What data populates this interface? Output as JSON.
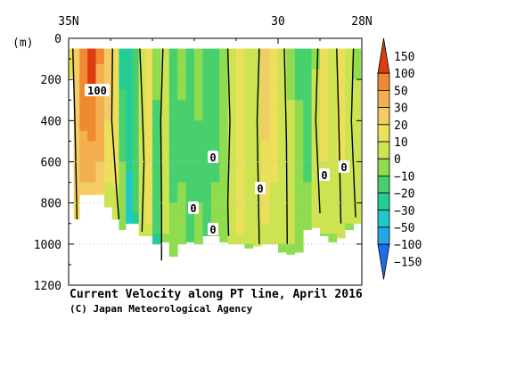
{
  "chart_data": {
    "type": "heatmap",
    "title": "Current Velocity along PT line, April 2016",
    "credit": "(C) Japan Meteorological Agency",
    "ylabel": "(m)",
    "x_ticks": [
      "35N",
      "30",
      "28N"
    ],
    "x_tick_values": [
      35,
      30,
      28
    ],
    "xlim": [
      35,
      28
    ],
    "y_ticks": [
      0,
      200,
      400,
      600,
      800,
      1000,
      1200
    ],
    "ylim": [
      0,
      1200
    ],
    "y_inverted": true,
    "grid": false,
    "colorbar": {
      "placement": "right",
      "levels": [
        150,
        100,
        50,
        30,
        20,
        10,
        0,
        -10,
        -20,
        -30,
        -50,
        -100,
        -150
      ],
      "level_labels": [
        "150",
        "100",
        "50",
        "30",
        "20",
        "10",
        "0",
        "−10",
        "−20",
        "−30",
        "−50",
        "−100",
        "−150"
      ],
      "colors": [
        "#dd3c10",
        "#f08a30",
        "#f4b050",
        "#f4cc66",
        "#ecdf5c",
        "#cde352",
        "#8fdc4e",
        "#48d06e",
        "#26cc95",
        "#20c8c8",
        "#22a8e8",
        "#1c6ee8"
      ]
    },
    "contour_labels": [
      "100",
      "0",
      "0",
      "0",
      "0",
      "0",
      "0"
    ],
    "columns": [
      {
        "lat": 34.93,
        "maxdepth": 190,
        "v": [
          [
            0,
            20
          ],
          [
            200,
            20
          ]
        ]
      },
      {
        "lat": 34.83,
        "maxdepth": 880,
        "v": [
          [
            0,
            30
          ],
          [
            300,
            30
          ],
          [
            800,
            20
          ]
        ]
      },
      {
        "lat": 34.65,
        "maxdepth": 760,
        "v": [
          [
            0,
            50
          ],
          [
            200,
            60
          ],
          [
            450,
            50
          ],
          [
            700,
            30
          ]
        ]
      },
      {
        "lat": 34.45,
        "maxdepth": 760,
        "v": [
          [
            0,
            160
          ],
          [
            150,
            130
          ],
          [
            300,
            80
          ],
          [
            500,
            50
          ],
          [
            700,
            30
          ]
        ]
      },
      {
        "lat": 34.25,
        "maxdepth": 760,
        "v": [
          [
            0,
            60
          ],
          [
            250,
            40
          ],
          [
            600,
            30
          ],
          [
            750,
            20
          ]
        ]
      },
      {
        "lat": 34.05,
        "maxdepth": 820,
        "v": [
          [
            0,
            30
          ],
          [
            400,
            20
          ],
          [
            700,
            10
          ]
        ]
      },
      {
        "lat": 33.88,
        "maxdepth": 880,
        "v": [
          [
            0,
            10
          ],
          [
            300,
            20
          ],
          [
            600,
            15
          ],
          [
            850,
            5
          ]
        ]
      },
      {
        "lat": 33.72,
        "maxdepth": 930,
        "v": [
          [
            0,
            -30
          ],
          [
            250,
            -20
          ],
          [
            600,
            -10
          ],
          [
            900,
            -5
          ]
        ]
      },
      {
        "lat": 33.55,
        "maxdepth": 900,
        "v": [
          [
            0,
            -30
          ],
          [
            300,
            -20
          ],
          [
            650,
            -30
          ],
          [
            850,
            -40
          ]
        ]
      },
      {
        "lat": 33.4,
        "maxdepth": 900,
        "v": [
          [
            0,
            -20
          ],
          [
            300,
            -15
          ],
          [
            600,
            -10
          ],
          [
            850,
            -20
          ]
        ]
      },
      {
        "lat": 33.25,
        "maxdepth": 960,
        "v": [
          [
            0,
            5
          ],
          [
            250,
            10
          ],
          [
            600,
            10
          ],
          [
            900,
            5
          ]
        ]
      },
      {
        "lat": 33.1,
        "maxdepth": 960,
        "v": [
          [
            0,
            10
          ],
          [
            300,
            20
          ],
          [
            700,
            15
          ],
          [
            900,
            10
          ]
        ]
      },
      {
        "lat": 32.9,
        "maxdepth": 1000,
        "v": [
          [
            0,
            -5
          ],
          [
            300,
            -10
          ],
          [
            600,
            -15
          ],
          [
            950,
            -20
          ]
        ]
      },
      {
        "lat": 32.7,
        "maxdepth": 990,
        "v": [
          [
            0,
            5
          ],
          [
            300,
            5
          ],
          [
            700,
            5
          ],
          [
            950,
            0
          ]
        ]
      },
      {
        "lat": 32.5,
        "maxdepth": 1060,
        "v": [
          [
            0,
            -10
          ],
          [
            400,
            -15
          ],
          [
            800,
            -10
          ],
          [
            1000,
            -5
          ]
        ]
      },
      {
        "lat": 32.3,
        "maxdepth": 1000,
        "v": [
          [
            0,
            -5
          ],
          [
            300,
            -10
          ],
          [
            700,
            -10
          ],
          [
            950,
            -5
          ]
        ]
      },
      {
        "lat": 32.1,
        "maxdepth": 990,
        "v": [
          [
            0,
            -10
          ],
          [
            400,
            -20
          ],
          [
            800,
            -15
          ],
          [
            950,
            -10
          ]
        ]
      },
      {
        "lat": 31.9,
        "maxdepth": 1000,
        "v": [
          [
            0,
            -5
          ],
          [
            400,
            -10
          ],
          [
            800,
            -10
          ],
          [
            950,
            -5
          ]
        ]
      },
      {
        "lat": 31.7,
        "maxdepth": 960,
        "v": [
          [
            0,
            -10
          ],
          [
            300,
            -20
          ],
          [
            700,
            -15
          ],
          [
            900,
            -10
          ]
        ]
      },
      {
        "lat": 31.5,
        "maxdepth": 960,
        "v": [
          [
            0,
            -15
          ],
          [
            300,
            -10
          ],
          [
            700,
            -10
          ],
          [
            900,
            -5
          ]
        ]
      },
      {
        "lat": 31.3,
        "maxdepth": 990,
        "v": [
          [
            0,
            -10
          ],
          [
            300,
            -5
          ],
          [
            700,
            -10
          ],
          [
            950,
            -5
          ]
        ]
      },
      {
        "lat": 31.1,
        "maxdepth": 1000,
        "v": [
          [
            0,
            5
          ],
          [
            400,
            10
          ],
          [
            800,
            10
          ],
          [
            950,
            5
          ]
        ]
      },
      {
        "lat": 30.9,
        "maxdepth": 1000,
        "v": [
          [
            0,
            10
          ],
          [
            300,
            20
          ],
          [
            700,
            15
          ],
          [
            950,
            10
          ]
        ]
      },
      {
        "lat": 30.7,
        "maxdepth": 1020,
        "v": [
          [
            0,
            5
          ],
          [
            400,
            10
          ],
          [
            800,
            5
          ],
          [
            1000,
            0
          ]
        ]
      },
      {
        "lat": 30.5,
        "maxdepth": 1010,
        "v": [
          [
            0,
            0
          ],
          [
            300,
            5
          ],
          [
            700,
            10
          ],
          [
            950,
            5
          ]
        ]
      },
      {
        "lat": 30.3,
        "maxdepth": 1000,
        "v": [
          [
            0,
            20
          ],
          [
            200,
            30
          ],
          [
            500,
            20
          ],
          [
            900,
            10
          ]
        ]
      },
      {
        "lat": 30.1,
        "maxdepth": 1000,
        "v": [
          [
            0,
            10
          ],
          [
            300,
            15
          ],
          [
            700,
            10
          ],
          [
            950,
            5
          ]
        ]
      },
      {
        "lat": 29.9,
        "maxdepth": 1040,
        "v": [
          [
            0,
            0
          ],
          [
            300,
            10
          ],
          [
            700,
            5
          ],
          [
            1000,
            0
          ]
        ]
      },
      {
        "lat": 29.7,
        "maxdepth": 1050,
        "v": [
          [
            0,
            -10
          ],
          [
            300,
            0
          ],
          [
            700,
            5
          ],
          [
            1000,
            0
          ]
        ]
      },
      {
        "lat": 29.5,
        "maxdepth": 1040,
        "v": [
          [
            0,
            -20
          ],
          [
            300,
            -10
          ],
          [
            700,
            -5
          ],
          [
            1000,
            -5
          ]
        ]
      },
      {
        "lat": 29.3,
        "maxdepth": 930,
        "v": [
          [
            0,
            -20
          ],
          [
            300,
            -15
          ],
          [
            700,
            -10
          ],
          [
            900,
            -5
          ]
        ]
      },
      {
        "lat": 29.1,
        "maxdepth": 920,
        "v": [
          [
            0,
            -5
          ],
          [
            300,
            5
          ],
          [
            700,
            10
          ],
          [
            900,
            5
          ]
        ]
      },
      {
        "lat": 28.9,
        "maxdepth": 960,
        "v": [
          [
            0,
            10
          ],
          [
            300,
            15
          ],
          [
            600,
            10
          ],
          [
            950,
            0
          ]
        ]
      },
      {
        "lat": 28.7,
        "maxdepth": 990,
        "v": [
          [
            0,
            5
          ],
          [
            300,
            10
          ],
          [
            700,
            5
          ],
          [
            950,
            0
          ]
        ]
      },
      {
        "lat": 28.5,
        "maxdepth": 970,
        "v": [
          [
            0,
            10
          ],
          [
            300,
            20
          ],
          [
            600,
            10
          ],
          [
            950,
            5
          ]
        ]
      },
      {
        "lat": 28.3,
        "maxdepth": 930,
        "v": [
          [
            0,
            0
          ],
          [
            300,
            10
          ],
          [
            600,
            5
          ],
          [
            900,
            0
          ]
        ]
      },
      {
        "lat": 28.1,
        "maxdepth": 900,
        "v": [
          [
            0,
            -10
          ],
          [
            300,
            5
          ],
          [
            700,
            10
          ],
          [
            880,
            5
          ]
        ]
      }
    ],
    "zero_contours": [
      [
        [
          34.9,
          0
        ],
        [
          34.85,
          400
        ],
        [
          34.8,
          880
        ]
      ],
      [
        [
          33.95,
          0
        ],
        [
          33.97,
          400
        ],
        [
          33.85,
          750
        ],
        [
          33.8,
          880
        ]
      ],
      [
        [
          33.3,
          0
        ],
        [
          33.25,
          300
        ],
        [
          33.2,
          600
        ],
        [
          33.25,
          940
        ]
      ],
      [
        [
          32.75,
          0
        ],
        [
          32.8,
          400
        ],
        [
          32.78,
          800
        ],
        [
          32.78,
          1080
        ]
      ],
      [
        [
          31.2,
          0
        ],
        [
          31.15,
          400
        ],
        [
          31.2,
          800
        ],
        [
          31.18,
          960
        ]
      ],
      [
        [
          30.45,
          0
        ],
        [
          30.5,
          400
        ],
        [
          30.45,
          1000
        ]
      ],
      [
        [
          29.85,
          0
        ],
        [
          29.8,
          500
        ],
        [
          29.78,
          1000
        ]
      ],
      [
        [
          29.05,
          0
        ],
        [
          29.1,
          400
        ],
        [
          29.0,
          850
        ]
      ],
      [
        [
          28.6,
          0
        ],
        [
          28.55,
          400
        ],
        [
          28.5,
          900
        ]
      ],
      [
        [
          28.2,
          0
        ],
        [
          28.25,
          400
        ],
        [
          28.15,
          870
        ]
      ]
    ]
  }
}
